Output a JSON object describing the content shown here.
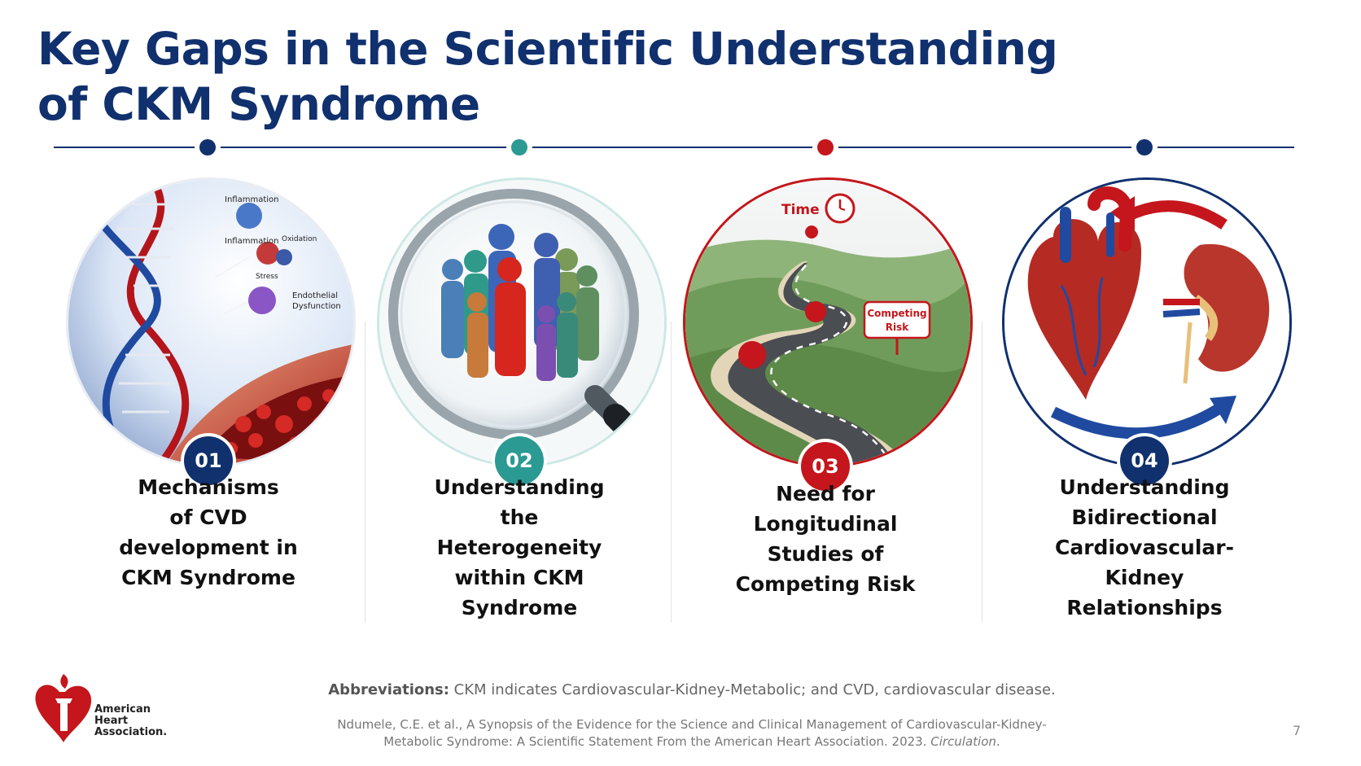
{
  "title": {
    "line1": "Key Gaps in the Scientific Understanding",
    "line2": "of CKM Syndrome"
  },
  "colors": {
    "navy": "#10306e",
    "teal": "#2a9a93",
    "red": "#c4161c"
  },
  "cards": [
    {
      "number": "01",
      "color": "#10306e",
      "title_lines": [
        "Mechanisms",
        "of CVD",
        "development in",
        "CKM Syndrome"
      ],
      "image_labels": {
        "inflammation_top": "Inflammation",
        "inflammation_mid": "Inflammation",
        "oxidative": "Oxidation",
        "stress": "Stress",
        "endothelial": "Endothelial",
        "dysfunction": "Dysfunction"
      }
    },
    {
      "number": "02",
      "color": "#2a9a93",
      "title_lines": [
        "Understanding",
        "the",
        "Heterogeneity",
        "within CKM",
        "Syndrome"
      ]
    },
    {
      "number": "03",
      "color": "#c4161c",
      "title_lines": [
        "Need for",
        "Longitudinal",
        "Studies of",
        "Competing Risk"
      ],
      "image_labels": {
        "time": "Time",
        "competing": "Competing",
        "risk": "Risk"
      }
    },
    {
      "number": "04",
      "color": "#10306e",
      "title_lines": [
        "Understanding",
        "Bidirectional",
        "Cardiovascular-",
        "Kidney",
        "Relationships"
      ]
    }
  ],
  "footer": {
    "abbrev_label": "Abbreviations:",
    "abbrev_text": " CKM indicates Cardiovascular-Kidney-Metabolic; and CVD, cardiovascular disease.",
    "citation_line1": "Ndumele, C.E. et al., A Synopsis of the Evidence for the Science and Clinical Management of Cardiovascular-Kidney-",
    "citation_line2_prefix": "Metabolic Syndrome: A Scientific Statement From the American Heart Association. 2023. ",
    "citation_journal": "Circulation",
    "citation_end": ".",
    "page_number": "7",
    "logo_lines": [
      "American",
      "Heart",
      "Association."
    ]
  }
}
